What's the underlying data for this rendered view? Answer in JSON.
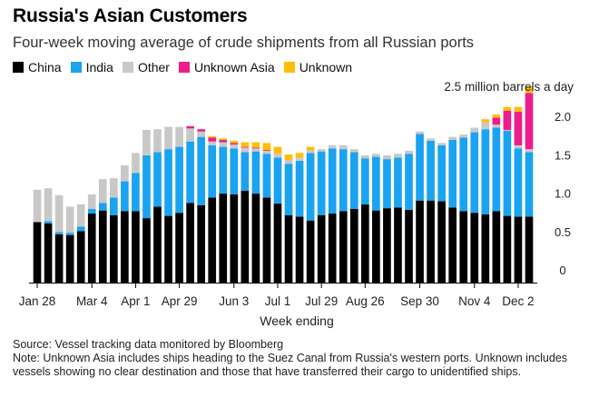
{
  "chart_data": {
    "type": "bar",
    "stacked": true,
    "title": "Russia's Asian Customers",
    "subtitle": "Four-week moving average of crude shipments from all Russian ports",
    "xlabel": "Week ending",
    "ylabel": "",
    "unit_annotation": "2.5 million barrels a day",
    "ylim": [
      0,
      2.5
    ],
    "yticks": [
      "0",
      "0.5",
      "1.0",
      "1.5",
      "2.0"
    ],
    "ytick_values": [
      0,
      0.5,
      1.0,
      1.5,
      2.0
    ],
    "axis_side": "right",
    "grid": false,
    "legend_position": "top-left",
    "xtick_labels": [
      {
        "label": "Jan 28",
        "index": 0
      },
      {
        "label": "Mar 4",
        "index": 5
      },
      {
        "label": "Apr 1",
        "index": 9
      },
      {
        "label": "Apr 29",
        "index": 13
      },
      {
        "label": "Jun 3",
        "index": 18
      },
      {
        "label": "Jul 1",
        "index": 22
      },
      {
        "label": "Jul 29",
        "index": 26
      },
      {
        "label": "Aug 26",
        "index": 30
      },
      {
        "label": "Sep 30",
        "index": 35
      },
      {
        "label": "Nov 4",
        "index": 40
      },
      {
        "label": "Dec 2",
        "index": 44
      }
    ],
    "series": [
      {
        "name": "China",
        "color": "#000000",
        "values": [
          0.79,
          0.77,
          0.63,
          0.62,
          0.67,
          0.9,
          0.94,
          0.88,
          0.93,
          0.93,
          0.84,
          0.99,
          0.87,
          0.91,
          1.04,
          1.01,
          1.11,
          1.16,
          1.15,
          1.2,
          1.16,
          1.11,
          1.03,
          0.88,
          0.86,
          0.81,
          0.88,
          0.9,
          0.93,
          0.96,
          1.02,
          0.94,
          0.97,
          0.98,
          0.95,
          1.07,
          1.07,
          1.06,
          0.98,
          0.93,
          0.91,
          0.89,
          0.93,
          0.87,
          0.86,
          0.86
        ]
      },
      {
        "name": "India",
        "color": "#1aa3f0",
        "values": [
          0,
          0.03,
          0.03,
          0.03,
          0.06,
          0.06,
          0.1,
          0.23,
          0.39,
          0.5,
          0.82,
          0.71,
          0.87,
          0.86,
          0.8,
          0.89,
          0.68,
          0.61,
          0.6,
          0.5,
          0.55,
          0.57,
          0.6,
          0.67,
          0.73,
          0.88,
          0.83,
          0.85,
          0.81,
          0.74,
          0.6,
          0.7,
          0.64,
          0.65,
          0.73,
          0.87,
          0.78,
          0.73,
          0.88,
          0.96,
          1.05,
          1.11,
          1.09,
          1.11,
          0.89,
          0.84
        ]
      },
      {
        "name": "Other",
        "color": "#c8c8c8",
        "values": [
          0.42,
          0.43,
          0.48,
          0.34,
          0.29,
          0.19,
          0.31,
          0.25,
          0.21,
          0.26,
          0.33,
          0.3,
          0.29,
          0.26,
          0.17,
          0.07,
          0.05,
          0.06,
          0.05,
          0.06,
          0.04,
          0.04,
          0.05,
          0.05,
          0.04,
          0.04,
          0.03,
          0.04,
          0.05,
          0.04,
          0.04,
          0.04,
          0.05,
          0.05,
          0.04,
          0.03,
          0.03,
          0.03,
          0.04,
          0.04,
          0.06,
          0.09,
          0.04,
          0.01,
          0.04,
          0.04
        ]
      },
      {
        "name": "Unknown Asia",
        "color": "#ee1c8c",
        "values": [
          0,
          0,
          0,
          0,
          0,
          0,
          0,
          0,
          0,
          0,
          0,
          0,
          0,
          0,
          0.03,
          0.03,
          0.05,
          0.03,
          0.02,
          0.01,
          0.01,
          0.01,
          0,
          0,
          0,
          0,
          0,
          0,
          0,
          0,
          0,
          0,
          0,
          0,
          0,
          0,
          0,
          0,
          0,
          0,
          0,
          0,
          0.09,
          0.25,
          0.44,
          0.73
        ]
      },
      {
        "name": "Unknown",
        "color": "#ffbe00",
        "values": [
          0,
          0,
          0,
          0,
          0,
          0,
          0,
          0,
          0,
          0,
          0,
          0,
          0,
          0,
          0,
          0,
          0.02,
          0.02,
          0.03,
          0.06,
          0.07,
          0.09,
          0.09,
          0.07,
          0.06,
          0.04,
          0,
          0,
          0,
          0,
          0,
          0,
          0,
          0,
          0,
          0,
          0,
          0,
          0,
          0,
          0,
          0.04,
          0.04,
          0.05,
          0.06,
          0.09
        ]
      }
    ]
  },
  "footer": {
    "source": "Source: Vessel tracking data monitored by Bloomberg",
    "note": "Note: Unknown Asia includes ships heading to the Suez Canal from Russia's western ports. Unknown includes vessels showing no clear destination and those that have transferred their cargo to unidentified ships."
  }
}
